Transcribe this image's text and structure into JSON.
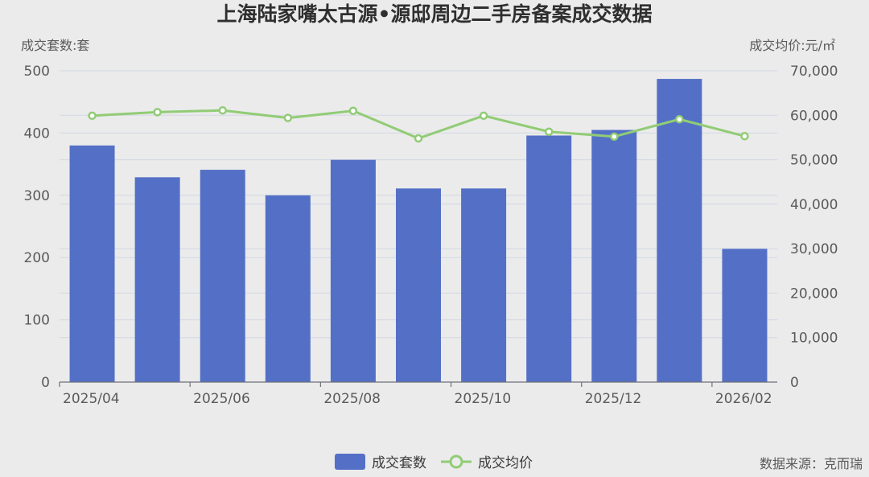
{
  "title": "上海陆家嘴太古源•源邸周边二手房备案成交数据",
  "source": "数据来源：克而瑞",
  "colors": {
    "bar": "#5470c6",
    "line": "#91cc75",
    "grid": "#d3d7e6",
    "background": "#ebebeb"
  },
  "chart_data": {
    "type": "bar",
    "categories": [
      "2025/04",
      "2025/05",
      "2025/06",
      "2025/07",
      "2025/08",
      "2025/09",
      "2025/10",
      "2025/11",
      "2025/12",
      "2026/01",
      "2026/02"
    ],
    "x_tick_labels": [
      "2025/04",
      "2025/06",
      "2025/08",
      "2025/10",
      "2025/12",
      "2026/02"
    ],
    "y_left": {
      "label": "成交套数:套",
      "range": [
        0,
        500
      ],
      "ticks": [
        "0",
        "100",
        "200",
        "300",
        "400",
        "500"
      ]
    },
    "y_right": {
      "label": "成交均价:元/㎡",
      "range": [
        0,
        70000
      ],
      "ticks": [
        "0",
        "10,000",
        "20,000",
        "30,000",
        "40,000",
        "50,000",
        "60,000",
        "70,000"
      ]
    },
    "series": [
      {
        "name": "成交套数",
        "type": "bar",
        "axis": "left",
        "values": [
          380,
          329,
          341,
          300,
          357,
          311,
          311,
          396,
          405,
          487,
          214
        ]
      },
      {
        "name": "成交均价",
        "type": "line",
        "axis": "right",
        "values": [
          59900,
          60700,
          61100,
          59400,
          61000,
          54800,
          59900,
          56300,
          55200,
          59100,
          55300
        ]
      }
    ],
    "grid": true,
    "legend": "bottom-center"
  }
}
